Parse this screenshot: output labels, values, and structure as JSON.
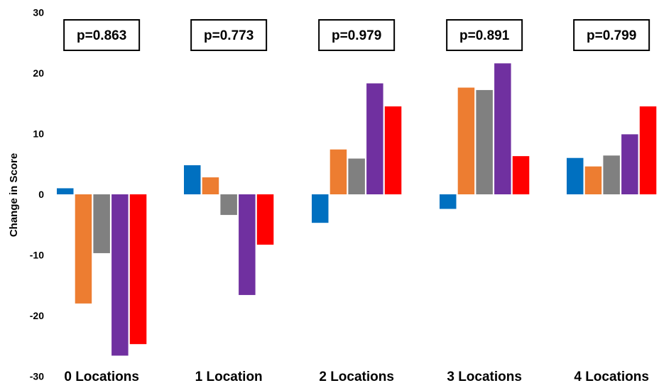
{
  "chart_data": {
    "type": "bar",
    "ylabel": "Change in Score",
    "ylim": [
      -30,
      30
    ],
    "yticks": [
      "30",
      "20",
      "10",
      "0",
      "-10",
      "-20",
      "-30"
    ],
    "categories": [
      "0 Locations",
      "1 Location",
      "2 Locations",
      "3 Locations",
      "4 Locations"
    ],
    "annotations": [
      "p=0.863",
      "p=0.773",
      "p=0.979",
      "p=0.891",
      "p=0.799"
    ],
    "grid": false,
    "legend": "none",
    "series": [
      {
        "color": "#0070c0",
        "values": [
          1.0,
          4.8,
          -4.7,
          -2.4,
          6.0
        ]
      },
      {
        "color": "#ed7d31",
        "values": [
          -18.0,
          2.8,
          7.4,
          17.6,
          4.6
        ]
      },
      {
        "color": "#808080",
        "values": [
          -9.7,
          -3.4,
          5.9,
          17.2,
          6.4
        ]
      },
      {
        "color": "#7030a0",
        "values": [
          -26.6,
          -16.6,
          18.3,
          21.6,
          9.9
        ]
      },
      {
        "color": "#ff0000",
        "values": [
          -24.7,
          -8.3,
          14.5,
          6.3,
          14.5
        ]
      }
    ]
  }
}
